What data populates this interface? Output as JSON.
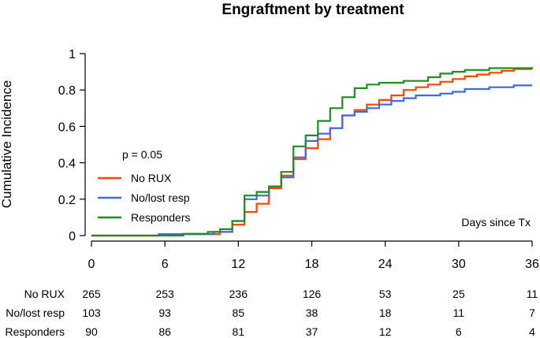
{
  "chart_data": {
    "type": "line",
    "title": "Engraftment by treatment",
    "ylabel": "Cumulative Incidence",
    "xlabel": "Days since Tx",
    "xlim": [
      0,
      36
    ],
    "ylim": [
      0,
      1
    ],
    "xticks": [
      "0",
      "6",
      "12",
      "18",
      "24",
      "30",
      "36"
    ],
    "yticks": [
      "0",
      "0.2",
      "0.4",
      "0.6",
      "0.8",
      "1"
    ],
    "annotation": "p = 0.05",
    "legend_position": "center-left",
    "series": [
      {
        "name": "No RUX",
        "color": "#ff4500",
        "points": [
          [
            0,
            0
          ],
          [
            5.5,
            0.008
          ],
          [
            10.5,
            0.02
          ],
          [
            11.5,
            0.06
          ],
          [
            12.5,
            0.13
          ],
          [
            13.5,
            0.175
          ],
          [
            14.5,
            0.26
          ],
          [
            15.5,
            0.33
          ],
          [
            16.5,
            0.42
          ],
          [
            17.5,
            0.48
          ],
          [
            18.5,
            0.53
          ],
          [
            19.5,
            0.59
          ],
          [
            20.5,
            0.66
          ],
          [
            21.5,
            0.69
          ],
          [
            22.5,
            0.72
          ],
          [
            23.5,
            0.745
          ],
          [
            24.5,
            0.77
          ],
          [
            25.5,
            0.8
          ],
          [
            26.5,
            0.815
          ],
          [
            27.5,
            0.83
          ],
          [
            28.5,
            0.845
          ],
          [
            29.5,
            0.86
          ],
          [
            30.5,
            0.875
          ],
          [
            31.5,
            0.885
          ],
          [
            32.5,
            0.895
          ],
          [
            33.5,
            0.905
          ],
          [
            34.5,
            0.915
          ],
          [
            36,
            0.915
          ]
        ]
      },
      {
        "name": "No/lost resp",
        "color": "#4169e1",
        "points": [
          [
            0,
            0
          ],
          [
            5.5,
            0.008
          ],
          [
            10,
            0.02
          ],
          [
            11.5,
            0.08
          ],
          [
            12.5,
            0.2
          ],
          [
            13.5,
            0.22
          ],
          [
            14.5,
            0.27
          ],
          [
            15.5,
            0.32
          ],
          [
            16.5,
            0.43
          ],
          [
            17.5,
            0.52
          ],
          [
            18.5,
            0.56
          ],
          [
            19.5,
            0.59
          ],
          [
            20.5,
            0.66
          ],
          [
            21.5,
            0.68
          ],
          [
            22.5,
            0.7
          ],
          [
            23.5,
            0.72
          ],
          [
            24.5,
            0.74
          ],
          [
            25.5,
            0.755
          ],
          [
            26.5,
            0.77
          ],
          [
            28.5,
            0.78
          ],
          [
            29.5,
            0.79
          ],
          [
            30.5,
            0.805
          ],
          [
            32.5,
            0.815
          ],
          [
            34.5,
            0.825
          ],
          [
            36,
            0.825
          ]
        ]
      },
      {
        "name": "Responders",
        "color": "#228b22",
        "points": [
          [
            0,
            0
          ],
          [
            7.5,
            0.01
          ],
          [
            9.5,
            0.02
          ],
          [
            10.5,
            0.035
          ],
          [
            11.5,
            0.08
          ],
          [
            12.5,
            0.22
          ],
          [
            13.5,
            0.24
          ],
          [
            14.5,
            0.27
          ],
          [
            15.5,
            0.35
          ],
          [
            16.5,
            0.49
          ],
          [
            17.5,
            0.55
          ],
          [
            18.5,
            0.63
          ],
          [
            19.5,
            0.7
          ],
          [
            20.5,
            0.76
          ],
          [
            21.5,
            0.81
          ],
          [
            22.5,
            0.83
          ],
          [
            23.5,
            0.84
          ],
          [
            25.5,
            0.85
          ],
          [
            27.5,
            0.87
          ],
          [
            28.5,
            0.89
          ],
          [
            29.5,
            0.9
          ],
          [
            30.5,
            0.91
          ],
          [
            32.5,
            0.92
          ],
          [
            36,
            0.925
          ]
        ]
      }
    ],
    "risk_table": {
      "times": [
        0,
        6,
        12,
        18,
        24,
        30,
        36
      ],
      "rows": [
        {
          "label": "No RUX",
          "values": [
            "265",
            "253",
            "236",
            "126",
            "53",
            "25",
            "11"
          ]
        },
        {
          "label": "No/lost resp",
          "values": [
            "103",
            "93",
            "85",
            "38",
            "18",
            "11",
            "7"
          ]
        },
        {
          "label": "Responders",
          "values": [
            "90",
            "86",
            "81",
            "37",
            "12",
            "6",
            "4"
          ]
        }
      ]
    }
  }
}
